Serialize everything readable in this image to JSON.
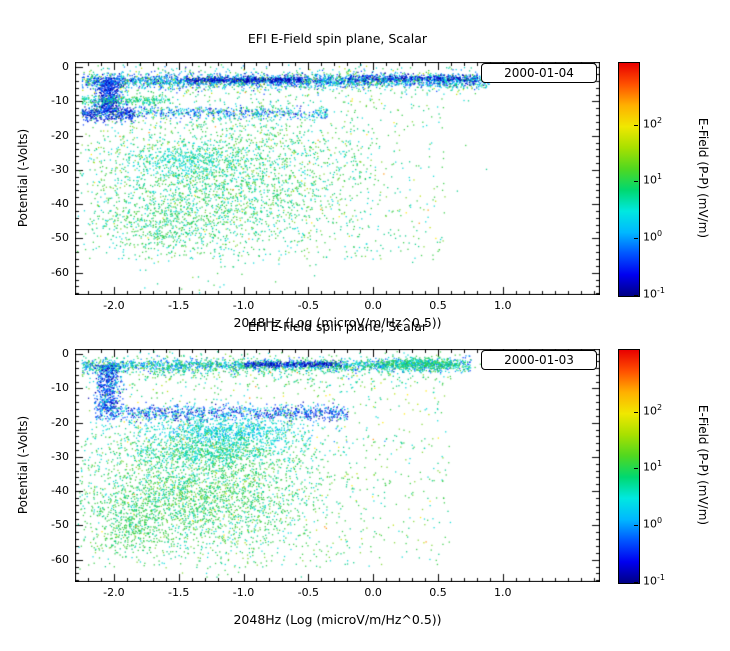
{
  "chart_data": [
    {
      "type": "scatter",
      "title": "EFI  E-Field spin plane, Scalar",
      "xlabel": "2048Hz (Log (microV/m/Hz^0.5))",
      "ylabel": "Potential (-Volts)",
      "legend": "2000-01-04",
      "xlim": [
        -2.3,
        1.75
      ],
      "ylim": [
        1.5,
        -66.5
      ],
      "xticks": [
        -2.0,
        -1.5,
        -1.0,
        -0.5,
        0.0,
        0.5,
        1.0
      ],
      "yticks": [
        0,
        -10,
        -20,
        -30,
        -40,
        -50,
        -60
      ],
      "xminor": 0.1,
      "yminor": 2,
      "seed": 104,
      "colorbar": {
        "label": "E-Field (P-P) (mV/m)",
        "base": "10",
        "min_exp": -1,
        "max_exp": 3.1,
        "tick_exps": [
          -1,
          0,
          1,
          2
        ],
        "colors": [
          "#000085",
          "#0000f0",
          "#0055ff",
          "#00b8ff",
          "#00e8e0",
          "#00d870",
          "#50d820",
          "#a8e000",
          "#f0e800",
          "#ffb000",
          "#ff5000",
          "#e80000"
        ]
      },
      "clusters": [
        {
          "n": 2200,
          "x": {
            "d": "u",
            "a": -2.25,
            "b": 0.9
          },
          "y": {
            "d": "g",
            "m": -3.8,
            "s": 1.0
          },
          "c": [
            [
              "#0040ff",
              3
            ],
            [
              "#0090ff",
              2
            ],
            [
              "#00d8d8",
              3
            ],
            [
              "#0000b0",
              2
            ],
            [
              "#33cc44",
              1
            ]
          ]
        },
        {
          "n": 500,
          "x": {
            "d": "u",
            "a": -1.45,
            "b": -0.55
          },
          "y": {
            "d": "g",
            "m": -3.6,
            "s": 0.4
          },
          "c": [
            [
              "#0000b0",
              5
            ],
            [
              "#0040ff",
              2
            ]
          ]
        },
        {
          "n": 380,
          "x": {
            "d": "u",
            "a": -0.2,
            "b": 0.8
          },
          "y": {
            "d": "g",
            "m": -3.2,
            "s": 0.5
          },
          "c": [
            [
              "#0000b0",
              4
            ],
            [
              "#0040ff",
              2
            ],
            [
              "#00d8d8",
              1
            ]
          ]
        },
        {
          "n": 700,
          "x": {
            "d": "u",
            "a": -2.25,
            "b": 0.8
          },
          "y": {
            "d": "g",
            "m": -4.0,
            "s": 2.3
          },
          "c": [
            [
              "#33cc44",
              2
            ],
            [
              "#00cc88",
              2
            ],
            [
              "#00d8d8",
              2
            ],
            [
              "#0090ff",
              1
            ],
            [
              "#b8e000",
              1
            ]
          ]
        },
        {
          "n": 550,
          "x": {
            "d": "g",
            "m": -2.05,
            "s": 0.05
          },
          "y": {
            "d": "u",
            "a": -13,
            "b": -3
          },
          "c": [
            [
              "#0000b0",
              3
            ],
            [
              "#0040ff",
              3
            ],
            [
              "#0090ff",
              1
            ]
          ]
        },
        {
          "n": 250,
          "x": {
            "d": "u",
            "a": -2.25,
            "b": -1.55
          },
          "y": {
            "d": "g",
            "m": -9.5,
            "s": 0.7
          },
          "c": [
            [
              "#33cc44",
              2
            ],
            [
              "#00d8d8",
              2
            ],
            [
              "#00cc88",
              1
            ]
          ]
        },
        {
          "n": 650,
          "x": {
            "d": "u",
            "a": -2.25,
            "b": -0.35
          },
          "y": {
            "d": "g",
            "m": -13.2,
            "s": 0.9
          },
          "c": [
            [
              "#00d8d8",
              3
            ],
            [
              "#0040ff",
              2
            ],
            [
              "#0090ff",
              2
            ],
            [
              "#33cc44",
              1
            ],
            [
              "#0000b0",
              1
            ]
          ]
        },
        {
          "n": 250,
          "x": {
            "d": "u",
            "a": -2.25,
            "b": -1.85
          },
          "y": {
            "d": "g",
            "m": -13.5,
            "s": 1.2
          },
          "c": [
            [
              "#0000b0",
              3
            ],
            [
              "#0040ff",
              2
            ]
          ]
        },
        {
          "n": 2600,
          "x": {
            "d": "g",
            "m": -1.15,
            "s": 0.55
          },
          "y": {
            "d": "g",
            "m": -33,
            "s": 11
          },
          "c": [
            [
              "#33cc44",
              3
            ],
            [
              "#00cc88",
              2
            ],
            [
              "#00d8d8",
              2
            ],
            [
              "#7fd633",
              1
            ]
          ]
        },
        {
          "n": 700,
          "x": {
            "d": "u",
            "a": -2.2,
            "b": 0.55
          },
          "y": {
            "d": "u",
            "a": -56,
            "b": -8
          },
          "c": [
            [
              "#33cc44",
              2
            ],
            [
              "#00d8d8",
              1
            ],
            [
              "#00cc88",
              1
            ],
            [
              "#7fd633",
              1
            ]
          ]
        },
        {
          "n": 300,
          "x": {
            "d": "g",
            "m": -1.45,
            "s": 0.18
          },
          "y": {
            "d": "g",
            "m": -27,
            "s": 2.5
          },
          "c": [
            [
              "#00d8d8",
              4
            ],
            [
              "#00cc88",
              1
            ]
          ]
        },
        {
          "n": 90,
          "x": {
            "d": "u",
            "a": -2.2,
            "b": 0.5
          },
          "y": {
            "d": "u",
            "a": -50,
            "b": -3
          },
          "c": [
            [
              "#ffe800",
              2
            ],
            [
              "#b8e000",
              2
            ],
            [
              "#ff9000",
              1
            ]
          ]
        },
        {
          "n": 350,
          "x": {
            "d": "g",
            "m": -1.6,
            "s": 0.25
          },
          "y": {
            "d": "g",
            "m": -46,
            "s": 4
          },
          "c": [
            [
              "#33cc44",
              3
            ],
            [
              "#00cc88",
              1
            ],
            [
              "#00d8d8",
              1
            ]
          ]
        }
      ]
    },
    {
      "type": "scatter",
      "title": "EFI  E-Field spin plane, Scalar",
      "xlabel": "2048Hz (Log (microV/m/Hz^0.5))",
      "ylabel": "Potential (-Volts)",
      "legend": "2000-01-03",
      "xlim": [
        -2.3,
        1.75
      ],
      "ylim": [
        1.5,
        -66.5
      ],
      "xticks": [
        -2.0,
        -1.5,
        -1.0,
        -0.5,
        0.0,
        0.5,
        1.0
      ],
      "yticks": [
        0,
        -10,
        -20,
        -30,
        -40,
        -50,
        -60
      ],
      "xminor": 0.1,
      "yminor": 2,
      "seed": 103,
      "colorbar": {
        "label": "E-Field (P-P) (mV/m)",
        "base": "10",
        "min_exp": -1,
        "max_exp": 3.1,
        "tick_exps": [
          -1,
          0,
          1,
          2
        ],
        "colors": [
          "#000085",
          "#0000f0",
          "#0055ff",
          "#00b8ff",
          "#00e8e0",
          "#00d870",
          "#50d820",
          "#a8e000",
          "#f0e800",
          "#ffb000",
          "#ff5000",
          "#e80000"
        ]
      },
      "clusters": [
        {
          "n": 1700,
          "x": {
            "d": "u",
            "a": -2.25,
            "b": 0.75
          },
          "y": {
            "d": "g",
            "m": -3.2,
            "s": 1.0
          },
          "c": [
            [
              "#00d8d8",
              3
            ],
            [
              "#33cc44",
              2
            ],
            [
              "#0040ff",
              2
            ],
            [
              "#0090ff",
              2
            ],
            [
              "#00cc88",
              1
            ]
          ]
        },
        {
          "n": 350,
          "x": {
            "d": "u",
            "a": -1.0,
            "b": -0.25
          },
          "y": {
            "d": "g",
            "m": -2.8,
            "s": 0.4
          },
          "c": [
            [
              "#0000b0",
              4
            ],
            [
              "#0040ff",
              2
            ]
          ]
        },
        {
          "n": 450,
          "x": {
            "d": "g",
            "m": 0.35,
            "s": 0.2
          },
          "y": {
            "d": "g",
            "m": -2.6,
            "s": 0.8
          },
          "c": [
            [
              "#33cc44",
              3
            ],
            [
              "#00d8d8",
              2
            ],
            [
              "#00cc88",
              1
            ],
            [
              "#0090ff",
              1
            ]
          ]
        },
        {
          "n": 600,
          "x": {
            "d": "u",
            "a": -2.25,
            "b": 0.6
          },
          "y": {
            "d": "g",
            "m": -4.0,
            "s": 2.4
          },
          "c": [
            [
              "#33cc44",
              2
            ],
            [
              "#00cc88",
              2
            ],
            [
              "#00d8d8",
              1
            ],
            [
              "#7fd633",
              1
            ]
          ]
        },
        {
          "n": 500,
          "x": {
            "d": "g",
            "m": -2.05,
            "s": 0.05
          },
          "y": {
            "d": "u",
            "a": -16,
            "b": -3
          },
          "c": [
            [
              "#0040ff",
              3
            ],
            [
              "#0000b0",
              2
            ],
            [
              "#0090ff",
              1
            ],
            [
              "#00d8d8",
              1
            ]
          ]
        },
        {
          "n": 900,
          "x": {
            "d": "u",
            "a": -2.15,
            "b": -0.2
          },
          "y": {
            "d": "g",
            "m": -17,
            "s": 1.2
          },
          "c": [
            [
              "#0040ff",
              3
            ],
            [
              "#0000b0",
              2
            ],
            [
              "#00d8d8",
              2
            ],
            [
              "#0090ff",
              1
            ]
          ]
        },
        {
          "n": 900,
          "x": {
            "d": "g",
            "m": -1.15,
            "s": 0.35
          },
          "y": {
            "d": "g",
            "m": -22.5,
            "s": 2.2
          },
          "c": [
            [
              "#00d8d8",
              5
            ],
            [
              "#00cc88",
              1
            ],
            [
              "#0090ff",
              1
            ]
          ]
        },
        {
          "n": 600,
          "x": {
            "d": "g",
            "m": -1.25,
            "s": 0.35
          },
          "y": {
            "d": "g",
            "m": -28.5,
            "s": 1.8
          },
          "c": [
            [
              "#00d8d8",
              3
            ],
            [
              "#33cc44",
              2
            ],
            [
              "#00cc88",
              1
            ]
          ]
        },
        {
          "n": 2800,
          "x": {
            "d": "g",
            "m": -1.35,
            "s": 0.5
          },
          "y": {
            "d": "g",
            "m": -40,
            "s": 9
          },
          "c": [
            [
              "#33cc44",
              3
            ],
            [
              "#00cc88",
              2
            ],
            [
              "#7fd633",
              1
            ],
            [
              "#00d8d8",
              1
            ]
          ]
        },
        {
          "n": 800,
          "x": {
            "d": "u",
            "a": -2.2,
            "b": 0.6
          },
          "y": {
            "d": "u",
            "a": -62,
            "b": -6
          },
          "c": [
            [
              "#33cc44",
              2
            ],
            [
              "#00d8d8",
              1
            ],
            [
              "#00cc88",
              1
            ],
            [
              "#7fd633",
              1
            ]
          ]
        },
        {
          "n": 110,
          "x": {
            "d": "u",
            "a": -2.1,
            "b": 0.5
          },
          "y": {
            "d": "u",
            "a": -55,
            "b": -3
          },
          "c": [
            [
              "#ffe800",
              2
            ],
            [
              "#b8e000",
              2
            ],
            [
              "#ff9000",
              1
            ]
          ]
        },
        {
          "n": 300,
          "x": {
            "d": "g",
            "m": -1.9,
            "s": 0.15
          },
          "y": {
            "d": "g",
            "m": -50,
            "s": 5
          },
          "c": [
            [
              "#33cc44",
              3
            ],
            [
              "#00cc88",
              1
            ]
          ]
        }
      ]
    }
  ]
}
